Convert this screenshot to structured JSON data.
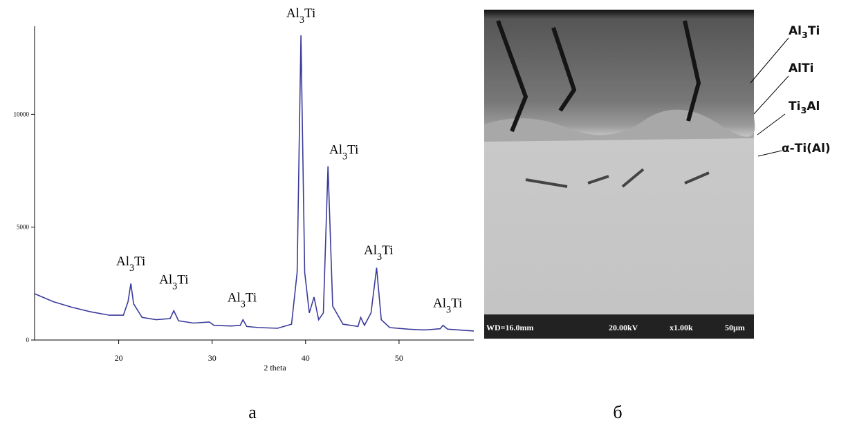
{
  "chart_data": {
    "type": "line",
    "x_label": "2 theta",
    "xlim": [
      11,
      58
    ],
    "xticks": [
      20,
      30,
      40,
      50
    ],
    "ylim": [
      0,
      13900
    ],
    "yticks": [
      0,
      5000,
      10000
    ],
    "x": [
      11,
      13,
      15,
      17,
      19,
      20.5,
      21.0,
      21.3,
      21.6,
      22.5,
      24,
      25.5,
      25.9,
      26.4,
      28,
      29.7,
      30.2,
      32,
      33.0,
      33.3,
      33.7,
      35,
      37,
      38.5,
      39.1,
      39.5,
      39.9,
      40.4,
      40.9,
      41.4,
      41.9,
      42.4,
      42.9,
      44,
      45.6,
      45.9,
      46.3,
      47.0,
      47.6,
      48.1,
      49,
      51,
      52.3,
      53,
      54.4,
      54.7,
      55.2,
      58
    ],
    "series": [
      {
        "color": "#3a3a9a",
        "values": [
          2050,
          1700,
          1450,
          1250,
          1100,
          1100,
          1700,
          2500,
          1600,
          1000,
          900,
          950,
          1300,
          850,
          750,
          800,
          650,
          620,
          650,
          900,
          600,
          550,
          520,
          700,
          3000,
          13500,
          3000,
          1200,
          1900,
          900,
          1200,
          7700,
          1500,
          700,
          600,
          1000,
          650,
          1200,
          3200,
          900,
          550,
          480,
          450,
          450,
          500,
          650,
          480,
          400
        ]
      }
    ],
    "annotations": [
      {
        "x": 21.3,
        "y": 3300,
        "text": "Al",
        "sub": "3",
        "tail": "Ti"
      },
      {
        "x": 25.9,
        "y": 2500,
        "text": "Al",
        "sub": "3",
        "tail": "Ti"
      },
      {
        "x": 33.2,
        "y": 1700,
        "text": "Al",
        "sub": "3",
        "tail": "Ti"
      },
      {
        "x": 39.5,
        "y": 14300,
        "text": "Al",
        "sub": "3",
        "tail": "Ti"
      },
      {
        "x": 44.1,
        "y": 8250,
        "text": "Al",
        "sub": "3",
        "tail": "Ti"
      },
      {
        "x": 47.8,
        "y": 3800,
        "text": "Al",
        "sub": "3",
        "tail": "Ti"
      },
      {
        "x": 55.2,
        "y": 1450,
        "text": "Al",
        "sub": "3",
        "tail": "Ti"
      }
    ]
  },
  "micrograph": {
    "layers": [
      {
        "text": "Al",
        "sub": "3",
        "tail": "Ti"
      },
      {
        "text": "AlTi"
      },
      {
        "text": "Ti",
        "sub": "3",
        "tail": "Al"
      },
      {
        "text": "α-Ti(Al)"
      }
    ],
    "info_bar": [
      "WD=16.0mm",
      "20.00kV",
      "x1.00k",
      "50µm"
    ]
  },
  "captions": [
    "а",
    "б"
  ]
}
